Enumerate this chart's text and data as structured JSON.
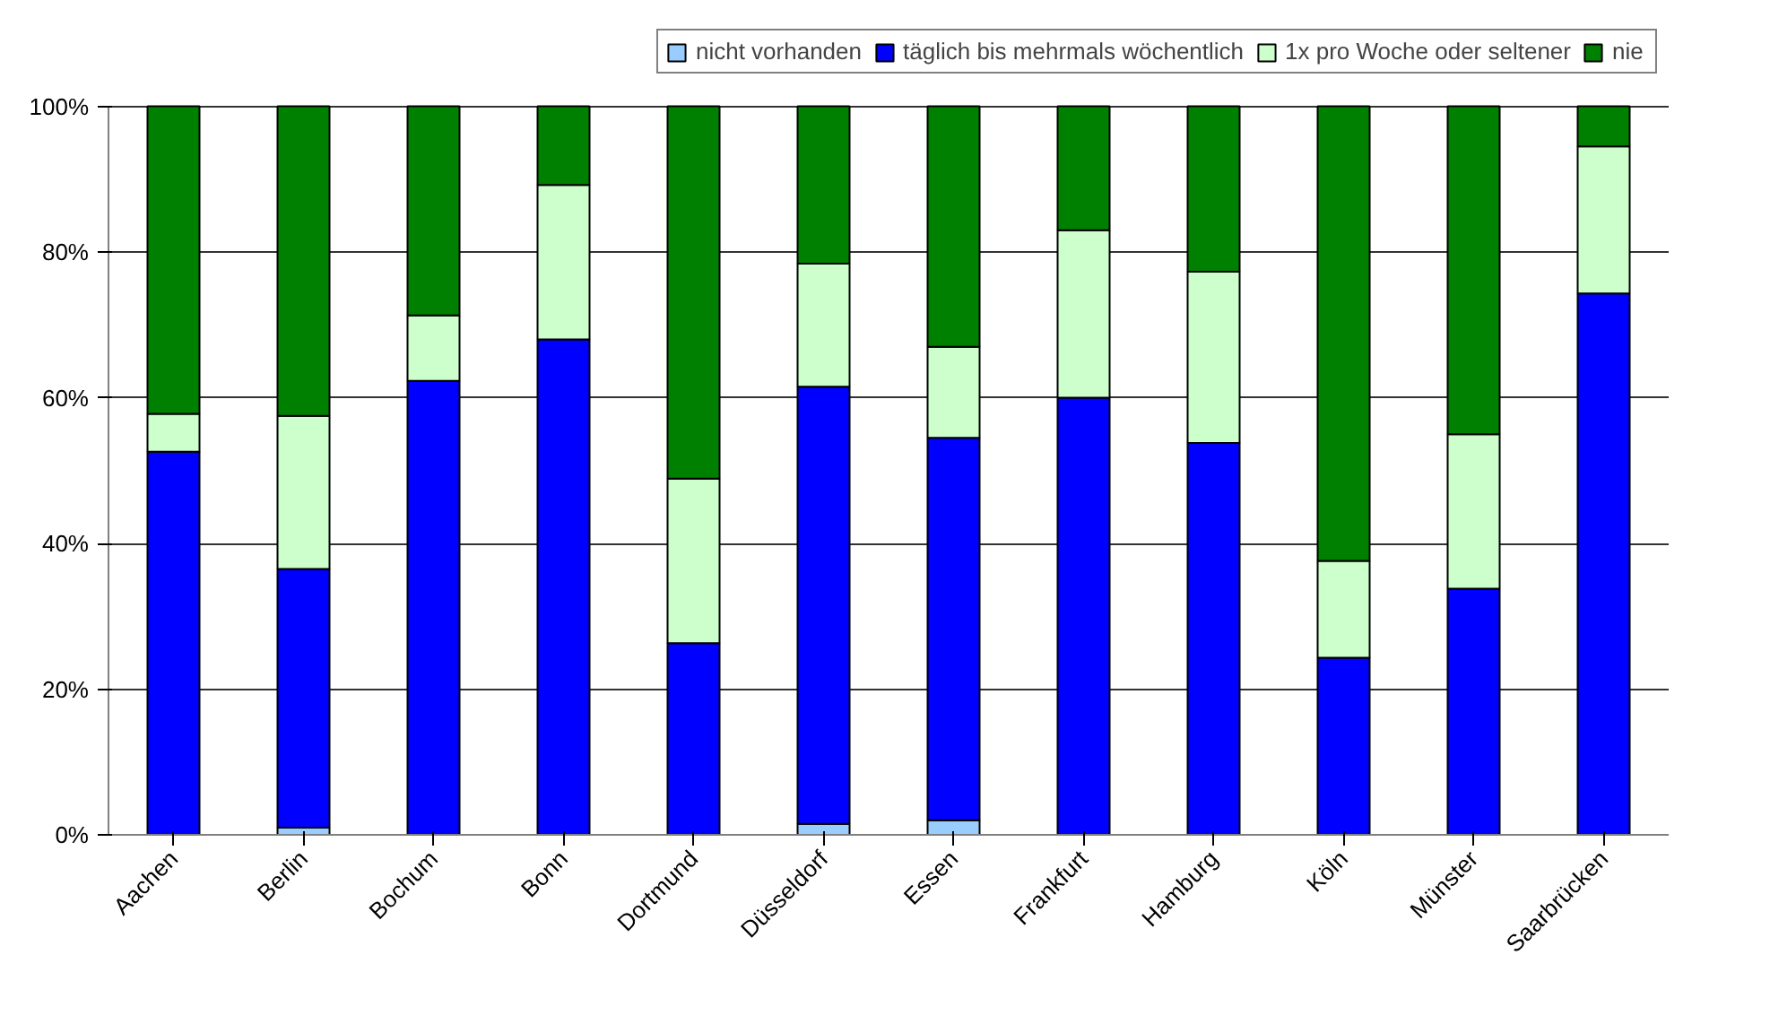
{
  "chart_data": {
    "type": "bar",
    "stacked": true,
    "categories": [
      "Aachen",
      "Berlin",
      "Bochum",
      "Bonn",
      "Dortmund",
      "Düsseldorf",
      "Essen",
      "Frankfurt",
      "Hamburg",
      "Köln",
      "Münster",
      "Saarbrücken"
    ],
    "series": [
      {
        "name": "nicht vorhanden",
        "color": "#99ccff",
        "values": [
          0,
          1,
          0,
          0,
          0,
          1.5,
          2,
          0,
          0,
          0,
          0,
          0
        ]
      },
      {
        "name": "täglich bis mehrmals wöchentlich",
        "color": "#0000ff",
        "values": [
          52.6,
          35.5,
          62.3,
          68,
          26.3,
          60,
          52.5,
          60,
          53.8,
          24.3,
          33.8,
          74.3
        ]
      },
      {
        "name": "1x pro Woche oder seltener",
        "color": "#ccffcc",
        "values": [
          5.2,
          21,
          9,
          21.2,
          22.6,
          16.9,
          12.5,
          23,
          23.5,
          13.3,
          21.2,
          20.2
        ]
      },
      {
        "name": "nie",
        "color": "#008000",
        "values": [
          42.2,
          42.5,
          28.7,
          10.8,
          51.1,
          21.6,
          33,
          17,
          22.7,
          62.4,
          45,
          5.5
        ]
      }
    ],
    "ylim": [
      0,
      100
    ],
    "yticks": [
      {
        "value": 0,
        "label": "0%"
      },
      {
        "value": 20,
        "label": "20%"
      },
      {
        "value": 40,
        "label": "40%"
      },
      {
        "value": 60,
        "label": "60%"
      },
      {
        "value": 80,
        "label": "80%"
      },
      {
        "value": 100,
        "label": "100%"
      }
    ],
    "grid": "y",
    "legend": "top"
  }
}
